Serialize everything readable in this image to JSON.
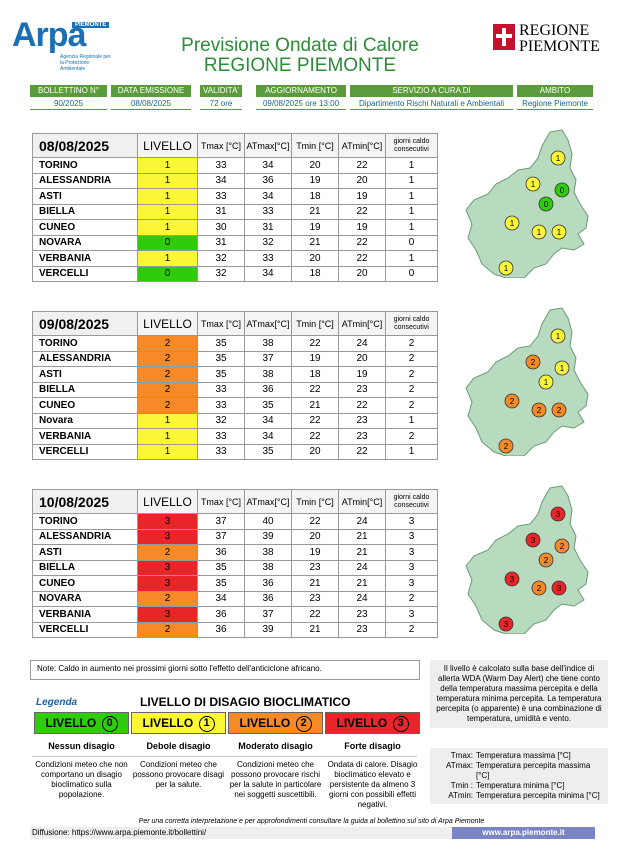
{
  "header": {
    "arpa_logo_text": "Arpa",
    "arpa_logo_tag": "PIEMONTE",
    "arpa_logo_sub": "Agenzia Regionale per la Protezione Ambientale",
    "title_line1": "Previsione Ondate di Calore",
    "title_line2": "REGIONE PIEMONTE",
    "regione_logo_line1": "REGIONE",
    "regione_logo_line2": "PIEMONTE"
  },
  "info": {
    "bollettino_label": "BOLLETTINO N°",
    "bollettino_value": "90/2025",
    "data_emissione_label": "DATA EMISSIONE",
    "data_emissione_value": "08/08/2025",
    "validita_label": "VALIDITA'",
    "validita_value": "72 ore",
    "aggiornamento_label": "AGGIORNAMENTO",
    "aggiornamento_value": "09/08/2025 ore 13:00",
    "servizio_label": "SERVIZIO A CURA DI",
    "servizio_value": "Dipartimento Rischi Naturali e Ambientali",
    "ambito_label": "AMBITO",
    "ambito_value": "Regione Piemonte"
  },
  "table_headers": {
    "livello": "LIVELLO",
    "tmax": "Tmax [°C]",
    "atmax": "ATmax[°C]",
    "tmin": "Tmin [°C]",
    "atmin": "ATmin[°C]",
    "giorni": "giorni caldo consecutivi"
  },
  "days": [
    {
      "date": "08/08/2025",
      "rows": [
        {
          "city": "TORINO",
          "level": 1,
          "tmax": 33,
          "atmax": 34,
          "tmin": 20,
          "atmin": 22,
          "giorni": 1
        },
        {
          "city": "ALESSANDRIA",
          "level": 1,
          "tmax": 34,
          "atmax": 36,
          "tmin": 19,
          "atmin": 20,
          "giorni": 1
        },
        {
          "city": "ASTI",
          "level": 1,
          "tmax": 33,
          "atmax": 34,
          "tmin": 18,
          "atmin": 19,
          "giorni": 1
        },
        {
          "city": "BIELLA",
          "level": 1,
          "tmax": 31,
          "atmax": 33,
          "tmin": 21,
          "atmin": 22,
          "giorni": 1
        },
        {
          "city": "CUNEO",
          "level": 1,
          "tmax": 30,
          "atmax": 31,
          "tmin": 19,
          "atmin": 19,
          "giorni": 1
        },
        {
          "city": "NOVARA",
          "level": 0,
          "tmax": 31,
          "atmax": 32,
          "tmin": 21,
          "atmin": 22,
          "giorni": 0
        },
        {
          "city": "VERBANIA",
          "level": 1,
          "tmax": 32,
          "atmax": 33,
          "tmin": 20,
          "atmin": 22,
          "giorni": 1
        },
        {
          "city": "VERCELLI",
          "level": 0,
          "tmax": 32,
          "atmax": 34,
          "tmin": 18,
          "atmin": 20,
          "giorni": 0
        }
      ]
    },
    {
      "date": "09/08/2025",
      "rows": [
        {
          "city": "TORINO",
          "level": 2,
          "tmax": 35,
          "atmax": 38,
          "tmin": 22,
          "atmin": 24,
          "giorni": 2
        },
        {
          "city": "ALESSANDRIA",
          "level": 2,
          "tmax": 35,
          "atmax": 37,
          "tmin": 19,
          "atmin": 20,
          "giorni": 2
        },
        {
          "city": "ASTI",
          "level": 2,
          "tmax": 35,
          "atmax": 38,
          "tmin": 18,
          "atmin": 19,
          "giorni": 2
        },
        {
          "city": "BIELLA",
          "level": 2,
          "tmax": 33,
          "atmax": 36,
          "tmin": 22,
          "atmin": 23,
          "giorni": 2
        },
        {
          "city": "CUNEO",
          "level": 2,
          "tmax": 33,
          "atmax": 35,
          "tmin": 21,
          "atmin": 22,
          "giorni": 2
        },
        {
          "city": "Novara",
          "level": 1,
          "tmax": 32,
          "atmax": 34,
          "tmin": 22,
          "atmin": 23,
          "giorni": 1
        },
        {
          "city": "VERBANIA",
          "level": 1,
          "tmax": 33,
          "atmax": 34,
          "tmin": 22,
          "atmin": 23,
          "giorni": 2
        },
        {
          "city": "VERCELLI",
          "level": 1,
          "tmax": 33,
          "atmax": 35,
          "tmin": 20,
          "atmin": 22,
          "giorni": 1
        }
      ]
    },
    {
      "date": "10/08/2025",
      "rows": [
        {
          "city": "TORINO",
          "level": 3,
          "tmax": 37,
          "atmax": 40,
          "tmin": 22,
          "atmin": 24,
          "giorni": 3
        },
        {
          "city": "ALESSANDRIA",
          "level": 3,
          "tmax": 37,
          "atmax": 39,
          "tmin": 20,
          "atmin": 21,
          "giorni": 3
        },
        {
          "city": "ASTI",
          "level": 2,
          "tmax": 36,
          "atmax": 38,
          "tmin": 19,
          "atmin": 21,
          "giorni": 3
        },
        {
          "city": "BIELLA",
          "level": 3,
          "tmax": 35,
          "atmax": 38,
          "tmin": 23,
          "atmin": 24,
          "giorni": 3
        },
        {
          "city": "CUNEO",
          "level": 3,
          "tmax": 35,
          "atmax": 36,
          "tmin": 21,
          "atmin": 21,
          "giorni": 3
        },
        {
          "city": "NOVARA",
          "level": 2,
          "tmax": 34,
          "atmax": 36,
          "tmin": 23,
          "atmin": 24,
          "giorni": 2
        },
        {
          "city": "VERBANIA",
          "level": 3,
          "tmax": 36,
          "atmax": 37,
          "tmin": 22,
          "atmin": 23,
          "giorni": 3
        },
        {
          "city": "VERCELLI",
          "level": 2,
          "tmax": 36,
          "atmax": 39,
          "tmin": 21,
          "atmin": 23,
          "giorni": 2
        }
      ]
    }
  ],
  "note": "Note: Caldo in aumento nei prossimi giorni sotto l'effetto dell'anticiclone africano.",
  "legend": {
    "legenda": "Legenda",
    "title": "LIVELLO DI DISAGIO BIOCLIMATICO",
    "levels": [
      {
        "label": "LIVELLO",
        "num": "0",
        "name": "Nessun disagio",
        "desc": "Condizioni meteo che non comportano un disagio bioclimatico sulla popolazione."
      },
      {
        "label": "LIVELLO",
        "num": "1",
        "name": "Debole disagio",
        "desc": "Condizioni meteo che possono provocare disagi per la salute."
      },
      {
        "label": "LIVELLO",
        "num": "2",
        "name": "Moderato disagio",
        "desc": "Condizioni meteo che possono provocare rischi per la salute in particolare nei soggetti suscettibili."
      },
      {
        "label": "LIVELLO",
        "num": "3",
        "name": "Forte disagio",
        "desc": "Ondata di calore. Disagio bioclimatico elevato e persistente da almeno 3 giorni con possibili effetti negativi."
      }
    ]
  },
  "side_note": "Il livello è calcolato sulla base dell'indice di allerta WDA (Warm Day Alert) che tiene conto della temperatura massima percepita e della temperatura minima percepita. La temperatura percepita (o apparente) è una combinazione di temperatura, umidità e vento.",
  "side_legend": [
    {
      "k": "Tmax:",
      "v": "Temperatura massima [°C]"
    },
    {
      "k": "ATmax:",
      "v": "Temperatura percepita massima [°C]"
    },
    {
      "k": "Tmin :",
      "v": "Temperatura minima [°C]"
    },
    {
      "k": "ATmin:",
      "v": "Temperatura percepita minima [°C]"
    }
  ],
  "footer": {
    "line1": "Per una corretta interpretazione e per approfondimenti consultare la guida al bollettino sul sito di Arpa Piemonte",
    "diffusione": "Diffusione: https://www.arpa.piemonte.it/bollettini/",
    "website": "www.arpa.piemonte.it"
  },
  "colors": {
    "level0": "#2ecc0a",
    "level1": "#fbf737",
    "level2": "#f58a27",
    "level3": "#e8262a",
    "title_green": "#2e8b3a",
    "map_fill": "#b8dbc0"
  }
}
